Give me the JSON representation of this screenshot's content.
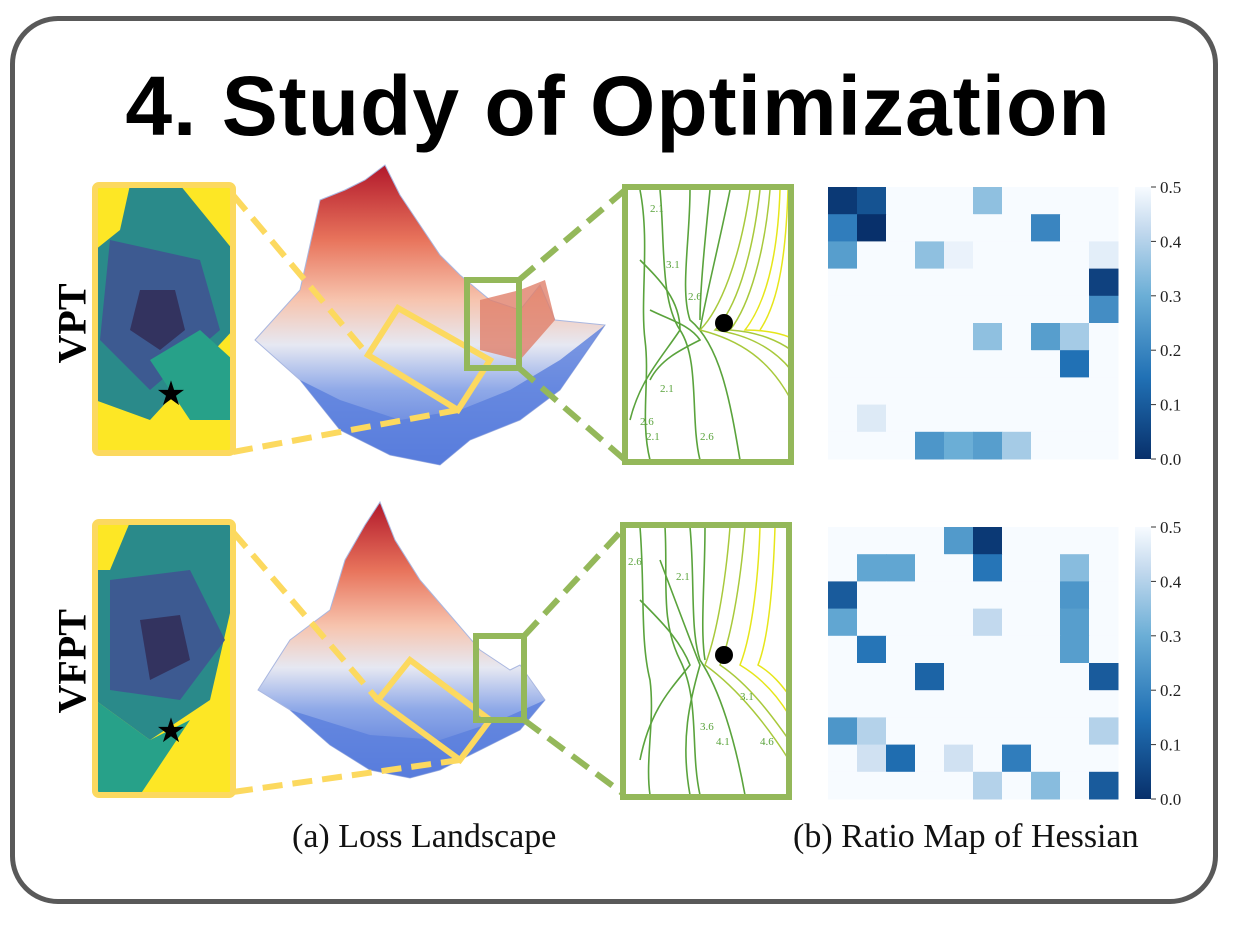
{
  "title": "4. Study of Optimization",
  "rows": [
    {
      "label": "VPT"
    },
    {
      "label": "VFPT"
    }
  ],
  "captions": {
    "loss_landscape": "(a) Loss Landscape",
    "hessian": "(b) Ratio Map of Hessian"
  },
  "colorbar": {
    "ticks": [
      "0.5",
      "0.4",
      "0.3",
      "0.2",
      "0.1",
      "0.0"
    ]
  },
  "contour_labels": {
    "vpt": [
      "2.1",
      "3.1",
      "2.6",
      "2.1",
      "2.6",
      "2.1",
      "2.6"
    ],
    "vfpt": [
      "2.6",
      "2.1",
      "3.6",
      "4.1",
      "3.1",
      "4.6"
    ]
  },
  "heatmaps": [
    {
      "row": "VPT",
      "size": 10,
      "cells": [
        [
          0.02,
          0.08,
          0.5,
          0.5,
          0.5,
          0.35,
          0.5,
          0.5,
          0.5,
          0.5
        ],
        [
          0.18,
          0.0,
          0.5,
          0.5,
          0.5,
          0.5,
          0.5,
          0.2,
          0.5,
          0.5
        ],
        [
          0.26,
          0.5,
          0.5,
          0.35,
          0.48,
          0.5,
          0.5,
          0.5,
          0.5,
          0.47
        ],
        [
          0.5,
          0.5,
          0.5,
          0.5,
          0.5,
          0.5,
          0.5,
          0.5,
          0.5,
          0.04
        ],
        [
          0.5,
          0.5,
          0.5,
          0.5,
          0.5,
          0.5,
          0.5,
          0.5,
          0.5,
          0.22
        ],
        [
          0.5,
          0.5,
          0.5,
          0.5,
          0.5,
          0.35,
          0.5,
          0.26,
          0.38,
          0.5
        ],
        [
          0.5,
          0.5,
          0.5,
          0.5,
          0.5,
          0.5,
          0.5,
          0.5,
          0.15,
          0.5
        ],
        [
          0.5,
          0.5,
          0.5,
          0.5,
          0.5,
          0.5,
          0.5,
          0.5,
          0.5,
          0.5
        ],
        [
          0.5,
          0.46,
          0.5,
          0.5,
          0.5,
          0.5,
          0.5,
          0.5,
          0.5,
          0.5
        ],
        [
          0.5,
          0.5,
          0.5,
          0.24,
          0.3,
          0.26,
          0.38,
          0.5,
          0.5,
          0.5
        ]
      ]
    },
    {
      "row": "VFPT",
      "size": 10,
      "cells": [
        [
          0.5,
          0.5,
          0.5,
          0.5,
          0.25,
          0.02,
          0.5,
          0.5,
          0.5,
          0.5
        ],
        [
          0.5,
          0.28,
          0.28,
          0.5,
          0.5,
          0.16,
          0.5,
          0.5,
          0.34,
          0.5
        ],
        [
          0.1,
          0.5,
          0.5,
          0.5,
          0.5,
          0.5,
          0.5,
          0.5,
          0.24,
          0.5
        ],
        [
          0.28,
          0.5,
          0.5,
          0.5,
          0.5,
          0.42,
          0.5,
          0.5,
          0.26,
          0.5
        ],
        [
          0.5,
          0.16,
          0.5,
          0.5,
          0.5,
          0.5,
          0.5,
          0.5,
          0.26,
          0.5
        ],
        [
          0.5,
          0.5,
          0.5,
          0.12,
          0.5,
          0.5,
          0.5,
          0.5,
          0.5,
          0.1
        ],
        [
          0.5,
          0.5,
          0.5,
          0.5,
          0.5,
          0.5,
          0.5,
          0.5,
          0.5,
          0.5
        ],
        [
          0.24,
          0.4,
          0.5,
          0.5,
          0.5,
          0.5,
          0.5,
          0.5,
          0.5,
          0.4
        ],
        [
          0.5,
          0.44,
          0.14,
          0.5,
          0.44,
          0.5,
          0.18,
          0.5,
          0.5,
          0.5
        ],
        [
          0.5,
          0.5,
          0.5,
          0.5,
          0.5,
          0.4,
          0.5,
          0.34,
          0.5,
          0.1
        ]
      ]
    }
  ],
  "colors": {
    "frame": "#595959",
    "yellow_frame": "#fcd95f",
    "green_frame": "#94b85a",
    "heatmap_dark": "#08306b",
    "heatmap_light": "#f7fbff"
  }
}
